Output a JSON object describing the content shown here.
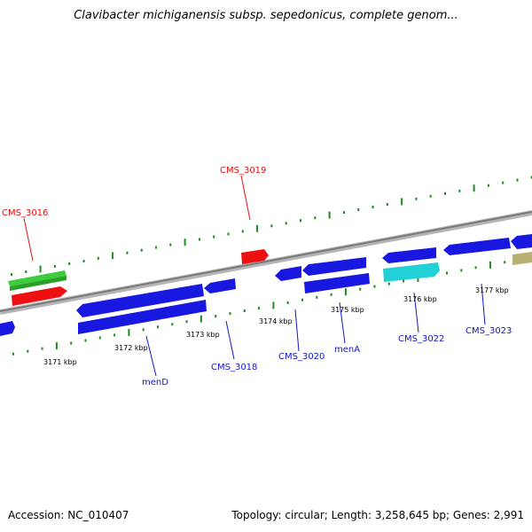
{
  "title": "Clavibacter michiganensis subsp. sepedonicus, complete genom...",
  "footer": {
    "accession": "Accession: NC_010407",
    "summary": "Topology: circular; Length: 3,258,645 bp; Genes: 2,991"
  },
  "colors": {
    "backbone": "#8c8c8c",
    "tick": "#1f8a1f",
    "label_blue": "#1515c8",
    "label_red": "#e01010",
    "gene_blue": "#1818e0",
    "gene_red": "#ee1010",
    "gene_green": "#3ccc3c",
    "gene_cyan": "#22d0d8",
    "gene_olive": "#b8b070"
  },
  "kbp_labels": [
    "3171 kbp",
    "3172 kbp",
    "3173 kbp",
    "3174 kbp",
    "3175 kbp",
    "3176 kbp",
    "3177 kbp"
  ],
  "gene_labels": [
    "CMS_3016",
    "CMS_3019",
    "menD",
    "CMS_3018",
    "CMS_3020",
    "menA",
    "CMS_3022",
    "CMS_3023"
  ]
}
